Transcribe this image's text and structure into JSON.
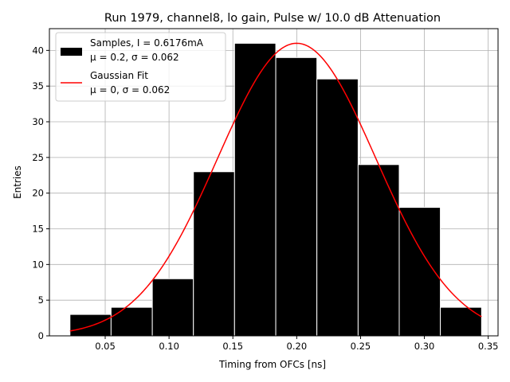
{
  "chart_data": {
    "type": "bar",
    "title": "Run 1979, channel8, lo gain, Pulse w/ 10.0 dB Attenuation",
    "xlabel": "Timing from OFCs [ns]",
    "ylabel": "Entries",
    "xlim": [
      0.0063,
      0.3577
    ],
    "ylim": [
      0,
      43.05
    ],
    "xticks": [
      0.05,
      0.1,
      0.15,
      0.2,
      0.25,
      0.3,
      0.35
    ],
    "xtick_labels": [
      "0.05",
      "0.10",
      "0.15",
      "0.20",
      "0.25",
      "0.30",
      "0.35"
    ],
    "yticks": [
      0,
      5,
      10,
      15,
      20,
      25,
      30,
      35,
      40
    ],
    "ytick_labels": [
      "0",
      "5",
      "10",
      "15",
      "20",
      "25",
      "30",
      "35",
      "40"
    ],
    "grid": true,
    "legend_position": "top-left",
    "histogram": {
      "name": "Samples",
      "bin_edges": [
        0.0224,
        0.0546,
        0.0869,
        0.1191,
        0.1513,
        0.1836,
        0.2158,
        0.2481,
        0.2803,
        0.3125,
        0.3448
      ],
      "values": [
        3,
        4,
        8,
        23,
        41,
        39,
        36,
        24,
        18,
        4
      ],
      "color": "#000000",
      "edgecolor": "#ffffff"
    },
    "fit": {
      "name": "Gaussian Fit",
      "mean": 0.2,
      "sigma": 0.062,
      "amplitude": 41,
      "x_range": [
        0.0224,
        0.3448
      ],
      "color": "#ff0000"
    },
    "legend": [
      {
        "kind": "patch",
        "line1": "Samples, I = 0.6176mA",
        "line2": "μ = 0.2, σ = 0.062"
      },
      {
        "kind": "line",
        "line1": "Gaussian Fit",
        "line2": "μ = 0, σ = 0.062"
      }
    ]
  }
}
